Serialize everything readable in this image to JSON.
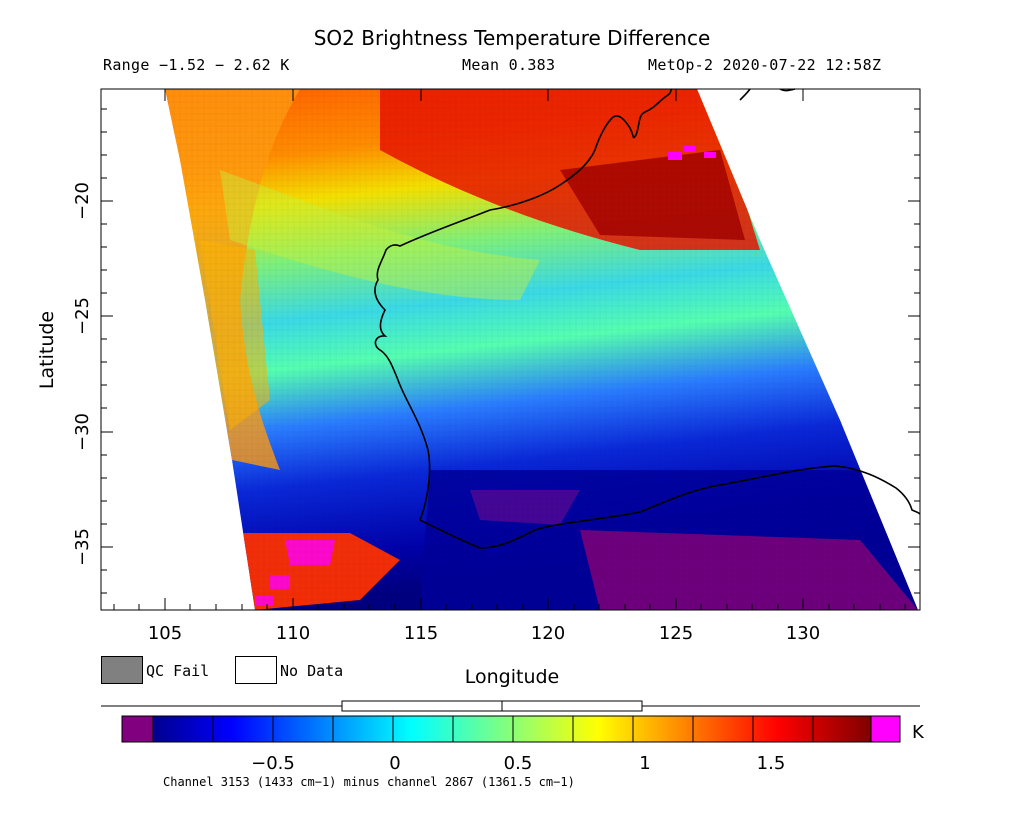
{
  "title": "SO2 Brightness Temperature Difference",
  "header": {
    "range": "Range −1.52 − 2.62 K",
    "mean": "Mean 0.383",
    "satellite": "MetOp-2 2020-07-22 12:58Z"
  },
  "axes": {
    "x_label": "Longitude",
    "y_label": "Latitude",
    "x_ticks": [
      "105",
      "110",
      "115",
      "120",
      "125",
      "130"
    ],
    "y_ticks": [
      "−20",
      "−25",
      "−30",
      "−35"
    ],
    "lon_range": [
      102.5,
      134.8
    ],
    "lat_range": [
      -37.8,
      -15.3
    ]
  },
  "legend": {
    "qc_fail": "QC Fail",
    "no_data": "No Data",
    "qc_fail_color": "#808080",
    "no_data_color": "#ffffff"
  },
  "colorbar": {
    "unit": "K",
    "tick_labels": [
      "−0.5",
      "0",
      "0.5",
      "1",
      "1.5"
    ],
    "tick_values": [
      -0.5,
      0,
      0.5,
      1,
      1.5
    ],
    "range": [
      -1.0,
      2.0
    ],
    "under_color": "#800080",
    "over_color": "#ff00ff"
  },
  "footnote": "Channel 3153 (1433 cm−1) minus channel 2867 (1361.5 cm−1)"
}
